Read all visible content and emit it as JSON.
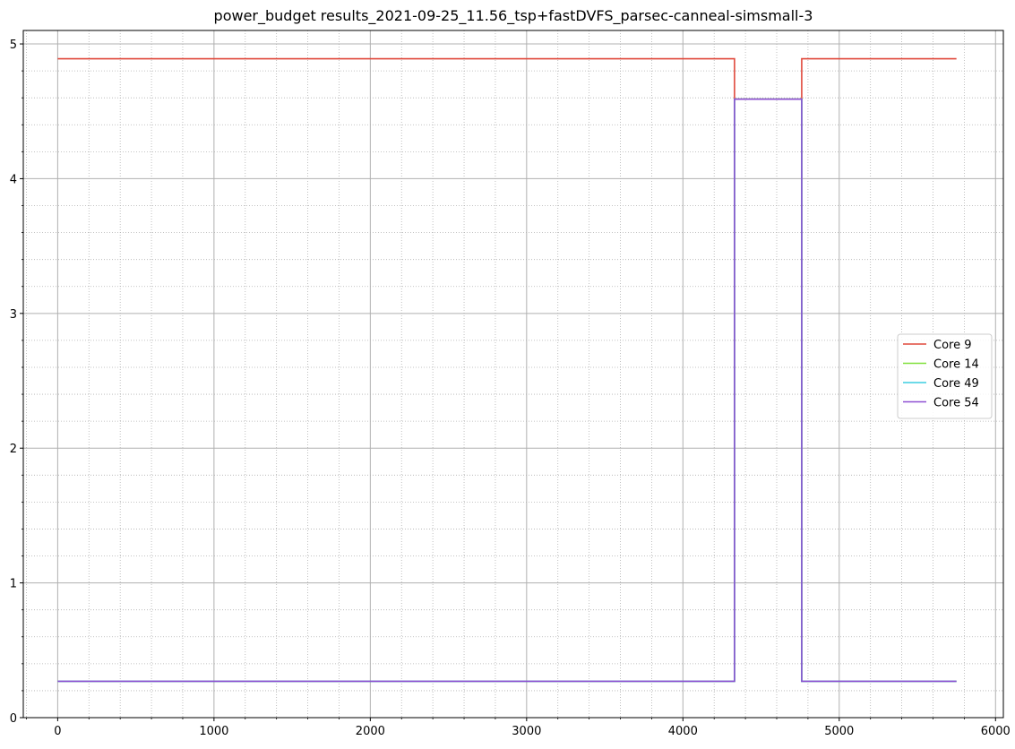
{
  "chart_data": {
    "type": "line",
    "title": "power_budget results_2021-09-25_11.56_tsp+fastDVFS_parsec-canneal-simsmall-3",
    "xlabel": "",
    "ylabel": "",
    "xlim": [
      -220,
      6050
    ],
    "ylim": [
      0,
      5.1
    ],
    "x_ticks": [
      0,
      1000,
      2000,
      3000,
      4000,
      5000,
      6000
    ],
    "y_ticks": [
      0,
      1,
      2,
      3,
      4,
      5
    ],
    "x_minor_step": 200,
    "y_minor_step": 0.2,
    "grid": true,
    "minor_grid": true,
    "legend_position": "center-right",
    "series": [
      {
        "name": "Core 9",
        "color": "#e0483b",
        "points": [
          [
            0,
            4.89
          ],
          [
            4330,
            4.89
          ],
          [
            4330,
            4.59
          ],
          [
            4760,
            4.59
          ],
          [
            4760,
            4.89
          ],
          [
            5750,
            4.89
          ]
        ]
      },
      {
        "name": "Core 14",
        "color": "#80e03b",
        "points": [
          [
            0,
            0.27
          ],
          [
            4330,
            0.27
          ],
          [
            4330,
            4.59
          ],
          [
            4760,
            4.59
          ],
          [
            4760,
            0.27
          ],
          [
            5750,
            0.27
          ]
        ]
      },
      {
        "name": "Core 49",
        "color": "#3bcde0",
        "points": [
          [
            0,
            0.27
          ],
          [
            4330,
            0.27
          ],
          [
            4330,
            4.59
          ],
          [
            4760,
            4.59
          ],
          [
            4760,
            0.27
          ],
          [
            5750,
            0.27
          ]
        ]
      },
      {
        "name": "Core 54",
        "color": "#8e4fd2",
        "points": [
          [
            0,
            0.27
          ],
          [
            4330,
            0.27
          ],
          [
            4330,
            4.59
          ],
          [
            4760,
            4.59
          ],
          [
            4760,
            0.27
          ],
          [
            5750,
            0.27
          ]
        ]
      }
    ]
  }
}
